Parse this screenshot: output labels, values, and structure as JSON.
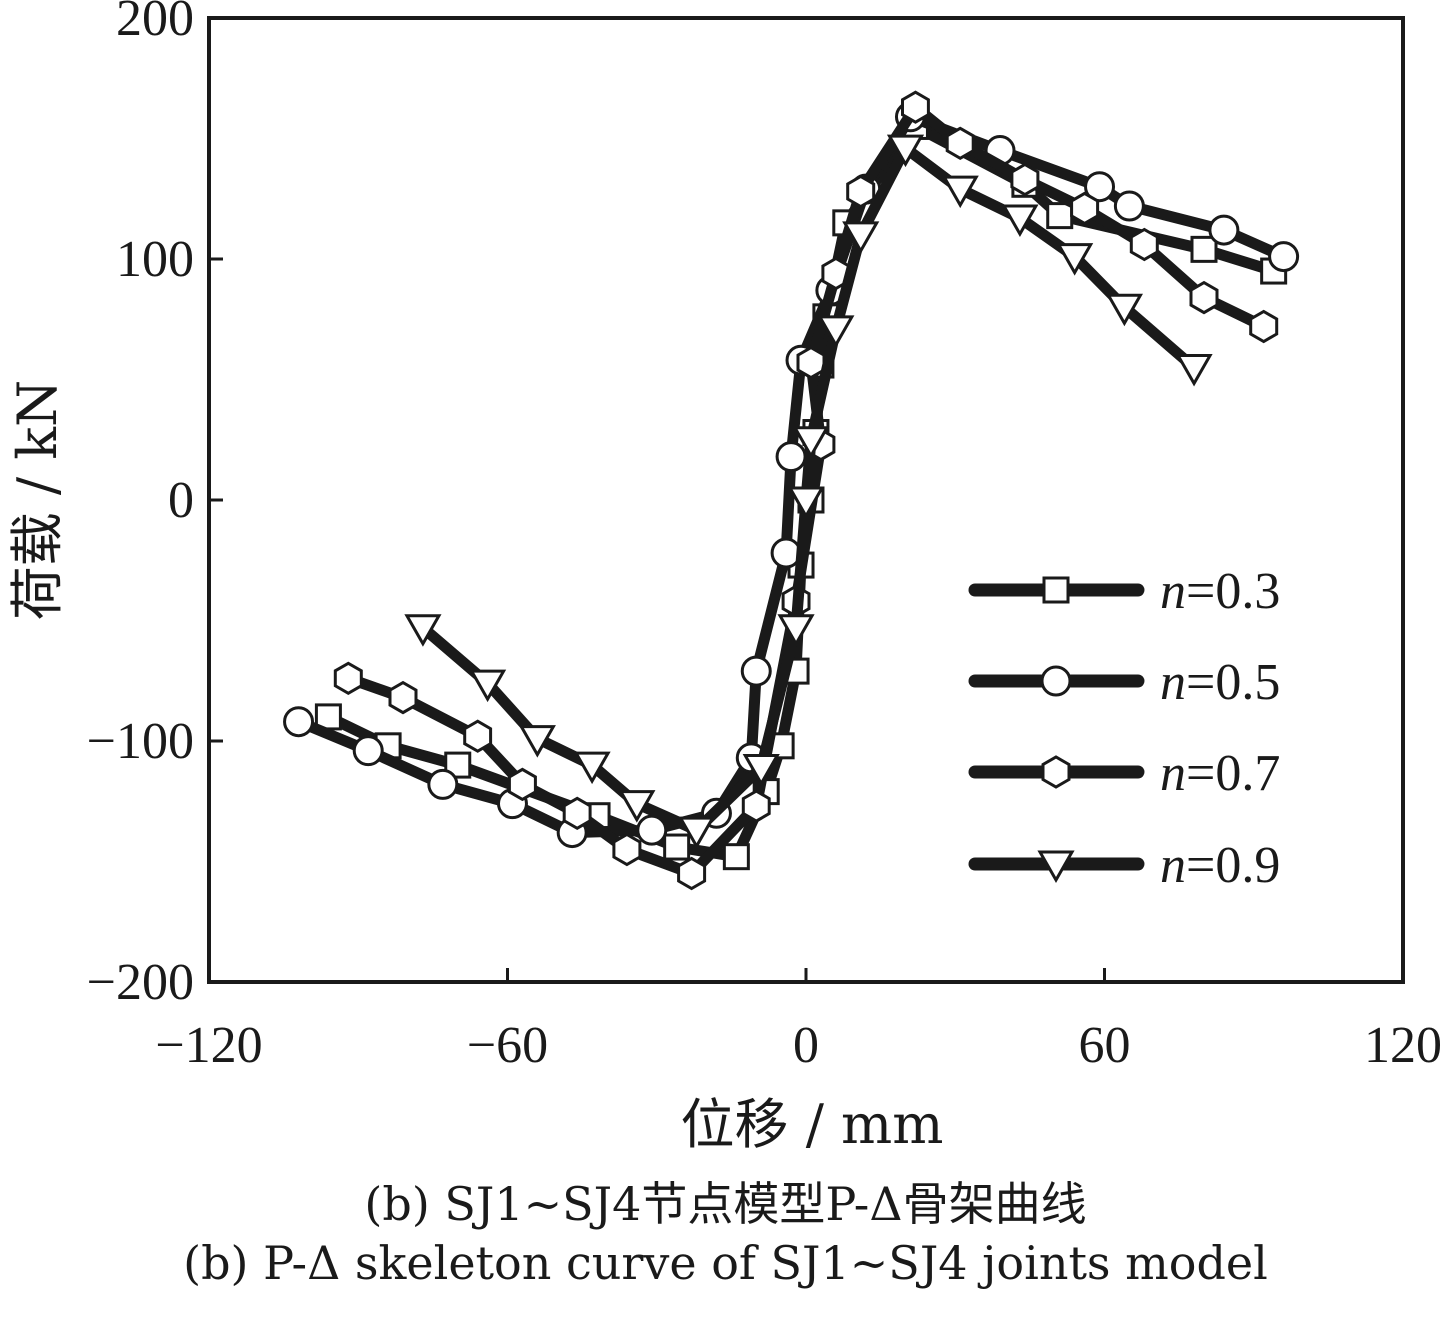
{
  "chart_data": {
    "type": "line",
    "xlabel": "位移 / mm",
    "ylabel": "荷载 / kN",
    "xlim": [
      -120,
      120
    ],
    "ylim": [
      -200,
      200
    ],
    "xticks": [
      -120,
      -60,
      0,
      60,
      120
    ],
    "yticks": [
      -200,
      -100,
      0,
      100,
      200
    ],
    "xtick_labels": [
      "−120",
      "−60",
      "0",
      "60",
      "120"
    ],
    "ytick_labels": [
      "−200",
      "−100",
      "0",
      "100",
      "200"
    ],
    "grid": false,
    "legend_position": "right",
    "legend": [
      {
        "prefix": "n",
        "label": "=0.3"
      },
      {
        "prefix": "n",
        "label": "=0.5"
      },
      {
        "prefix": "n",
        "label": "=0.7"
      },
      {
        "prefix": "n",
        "label": "=0.9"
      }
    ],
    "series": [
      {
        "name": "n=0.3",
        "marker": "square",
        "points": [
          [
            -96,
            -90
          ],
          [
            -84,
            -102
          ],
          [
            -70,
            -110
          ],
          [
            -42,
            -131
          ],
          [
            -26,
            -144
          ],
          [
            -14,
            -148
          ],
          [
            -8,
            -121
          ],
          [
            -5,
            -102
          ],
          [
            -2,
            -71
          ],
          [
            -1,
            -27
          ],
          [
            1,
            0
          ],
          [
            2,
            28
          ],
          [
            3,
            56
          ],
          [
            4,
            76
          ],
          [
            8,
            115
          ],
          [
            22,
            155
          ],
          [
            44,
            131
          ],
          [
            51,
            118
          ],
          [
            80,
            104
          ],
          [
            94,
            95
          ]
        ]
      },
      {
        "name": "n=0.5",
        "marker": "circle",
        "points": [
          [
            -102,
            -92
          ],
          [
            -88,
            -104
          ],
          [
            -73,
            -118
          ],
          [
            -59,
            -126
          ],
          [
            -47,
            -138
          ],
          [
            -31,
            -137
          ],
          [
            -18,
            -130
          ],
          [
            -11,
            -107
          ],
          [
            -10,
            -71
          ],
          [
            -4,
            -22
          ],
          [
            -3,
            18
          ],
          [
            -1,
            58
          ],
          [
            5,
            87
          ],
          [
            12,
            129
          ],
          [
            21,
            159
          ],
          [
            39,
            145
          ],
          [
            59,
            130
          ],
          [
            65,
            122
          ],
          [
            84,
            112
          ],
          [
            96,
            101
          ]
        ]
      },
      {
        "name": "n=0.7",
        "marker": "hexagon",
        "points": [
          [
            -92,
            -74
          ],
          [
            -81,
            -82
          ],
          [
            -66,
            -98
          ],
          [
            -57,
            -118
          ],
          [
            -46,
            -130
          ],
          [
            -36,
            -145
          ],
          [
            -23,
            -155
          ],
          [
            -10,
            -127
          ],
          [
            -2,
            -42
          ],
          [
            3,
            23
          ],
          [
            1,
            57
          ],
          [
            6,
            94
          ],
          [
            11,
            128
          ],
          [
            22,
            163
          ],
          [
            31,
            148
          ],
          [
            44,
            133
          ],
          [
            56,
            121
          ],
          [
            68,
            106
          ],
          [
            80,
            84
          ],
          [
            92,
            72
          ]
        ]
      },
      {
        "name": "n=0.9",
        "marker": "triangle",
        "points": [
          [
            -77,
            -53
          ],
          [
            -64,
            -76
          ],
          [
            -54,
            -99
          ],
          [
            -43,
            -110
          ],
          [
            -34,
            -126
          ],
          [
            -22,
            -137
          ],
          [
            -9,
            -111
          ],
          [
            -2,
            -53
          ],
          [
            0,
            0
          ],
          [
            1,
            25
          ],
          [
            6,
            71
          ],
          [
            11,
            110
          ],
          [
            20,
            146
          ],
          [
            31,
            129
          ],
          [
            43,
            117
          ],
          [
            54,
            101
          ],
          [
            64,
            80
          ],
          [
            78,
            55
          ]
        ]
      }
    ]
  },
  "captions": {
    "cn": "(b)  SJ1~SJ4节点模型P-Δ骨架曲线",
    "en": "(b)  P-Δ skeleton curve of SJ1~SJ4 joints model"
  }
}
